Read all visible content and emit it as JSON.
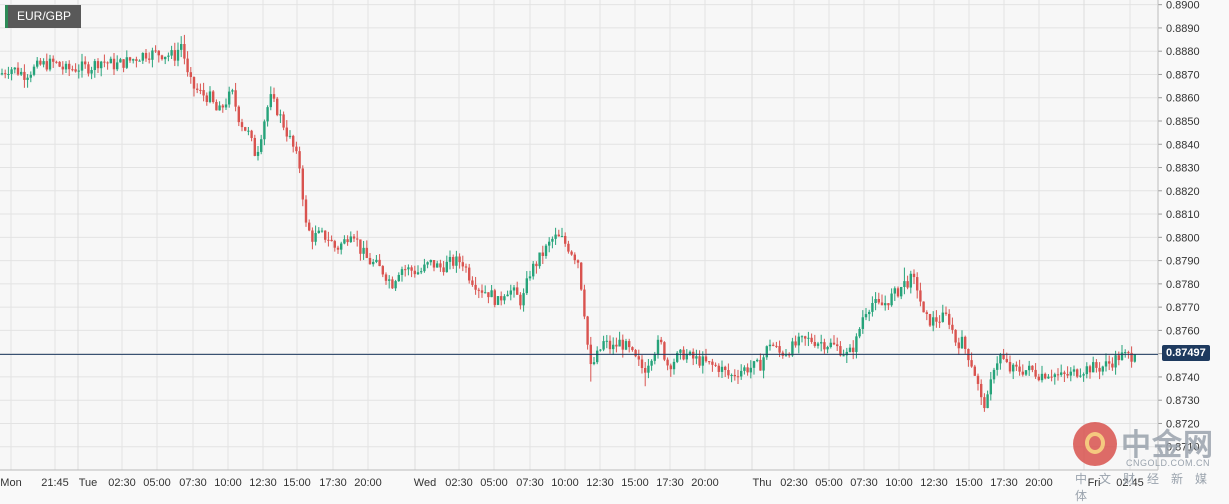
{
  "symbol": "EUR/GBP",
  "current_price": "0.87497",
  "watermark": {
    "brand": "中金网",
    "domain": "CNGOLD.COM.CN",
    "tagline": "中文财经新媒体"
  },
  "colors": {
    "up": "#26a37a",
    "down": "#d9534f",
    "price_line": "#1e3a5f",
    "grid": "#e3e3e3",
    "axis_text": "#333333"
  },
  "chart_data": {
    "type": "candlestick",
    "title": "",
    "xlabel": "",
    "ylabel": "",
    "ylim": [
      0.87,
      0.8902
    ],
    "y_ticks": [
      "0.8900",
      "0.8890",
      "0.8880",
      "0.8870",
      "0.8860",
      "0.8850",
      "0.8840",
      "0.8830",
      "0.8820",
      "0.8810",
      "0.8800",
      "0.8790",
      "0.8780",
      "0.8770",
      "0.8760",
      "0.8750",
      "0.8740",
      "0.8730",
      "0.8720",
      "0.8710"
    ],
    "x_tick_labels": [
      "Mon",
      "21:45",
      "Tue",
      "02:30",
      "05:00",
      "07:30",
      "10:00",
      "12:30",
      "15:00",
      "17:30",
      "20:00",
      "Wed",
      "02:30",
      "05:00",
      "07:30",
      "10:00",
      "12:30",
      "15:00",
      "17:30",
      "20:00",
      "Thu",
      "02:30",
      "05:00",
      "07:30",
      "10:00",
      "12:30",
      "15:00",
      "17:30",
      "20:00",
      "Fri",
      "02:45"
    ],
    "day_separators": [
      "Tue",
      "Wed",
      "Thu",
      "Fri"
    ],
    "grid": true,
    "anchors": [
      [
        0,
        0.887
      ],
      [
        10,
        0.8873
      ],
      [
        25,
        0.887
      ],
      [
        40,
        0.8874
      ],
      [
        55,
        0.8875
      ],
      [
        65,
        0.8872
      ],
      [
        80,
        0.8873
      ],
      [
        90,
        0.8873
      ],
      [
        100,
        0.8876
      ],
      [
        115,
        0.8874
      ],
      [
        130,
        0.8876
      ],
      [
        145,
        0.8879
      ],
      [
        160,
        0.8879
      ],
      [
        175,
        0.8878
      ],
      [
        182,
        0.8884
      ],
      [
        187,
        0.887
      ],
      [
        192,
        0.8865
      ],
      [
        200,
        0.8862
      ],
      [
        210,
        0.886
      ],
      [
        218,
        0.8853
      ],
      [
        225,
        0.8858
      ],
      [
        232,
        0.8862
      ],
      [
        240,
        0.885
      ],
      [
        248,
        0.8845
      ],
      [
        256,
        0.8835
      ],
      [
        264,
        0.885
      ],
      [
        270,
        0.886
      ],
      [
        277,
        0.8855
      ],
      [
        284,
        0.8848
      ],
      [
        292,
        0.884
      ],
      [
        300,
        0.883
      ],
      [
        306,
        0.8805
      ],
      [
        312,
        0.88
      ],
      [
        320,
        0.8801
      ],
      [
        328,
        0.88
      ],
      [
        336,
        0.8795
      ],
      [
        344,
        0.8798
      ],
      [
        352,
        0.8804
      ],
      [
        360,
        0.8795
      ],
      [
        368,
        0.879
      ],
      [
        376,
        0.8788
      ],
      [
        384,
        0.8785
      ],
      [
        392,
        0.878
      ],
      [
        400,
        0.8787
      ],
      [
        410,
        0.8786
      ],
      [
        420,
        0.8785
      ],
      [
        430,
        0.8789
      ],
      [
        440,
        0.8787
      ],
      [
        450,
        0.8789
      ],
      [
        462,
        0.879
      ],
      [
        470,
        0.8783
      ],
      [
        480,
        0.8778
      ],
      [
        490,
        0.8776
      ],
      [
        498,
        0.8772
      ],
      [
        506,
        0.8778
      ],
      [
        514,
        0.8776
      ],
      [
        522,
        0.8772
      ],
      [
        530,
        0.8785
      ],
      [
        538,
        0.879
      ],
      [
        546,
        0.8795
      ],
      [
        554,
        0.88
      ],
      [
        562,
        0.8799
      ],
      [
        570,
        0.8795
      ],
      [
        578,
        0.879
      ],
      [
        584,
        0.877
      ],
      [
        590,
        0.8743
      ],
      [
        596,
        0.8748
      ],
      [
        604,
        0.8755
      ],
      [
        612,
        0.8752
      ],
      [
        620,
        0.8755
      ],
      [
        628,
        0.8752
      ],
      [
        636,
        0.8747
      ],
      [
        644,
        0.8743
      ],
      [
        652,
        0.875
      ],
      [
        660,
        0.8755
      ],
      [
        668,
        0.8745
      ],
      [
        676,
        0.8748
      ],
      [
        684,
        0.875
      ],
      [
        692,
        0.8748
      ],
      [
        700,
        0.8747
      ],
      [
        710,
        0.8745
      ],
      [
        720,
        0.8744
      ],
      [
        730,
        0.874
      ],
      [
        740,
        0.8743
      ],
      [
        750,
        0.8744
      ],
      [
        760,
        0.8745
      ],
      [
        770,
        0.8755
      ],
      [
        780,
        0.875
      ],
      [
        790,
        0.8752
      ],
      [
        800,
        0.8755
      ],
      [
        810,
        0.8756
      ],
      [
        820,
        0.8755
      ],
      [
        830,
        0.8754
      ],
      [
        840,
        0.8752
      ],
      [
        848,
        0.8749
      ],
      [
        856,
        0.8755
      ],
      [
        864,
        0.8768
      ],
      [
        872,
        0.8772
      ],
      [
        880,
        0.877
      ],
      [
        888,
        0.8773
      ],
      [
        896,
        0.8776
      ],
      [
        904,
        0.878
      ],
      [
        912,
        0.8782
      ],
      [
        918,
        0.8778
      ],
      [
        924,
        0.8765
      ],
      [
        932,
        0.8764
      ],
      [
        940,
        0.8765
      ],
      [
        948,
        0.8766
      ],
      [
        956,
        0.8755
      ],
      [
        962,
        0.8755
      ],
      [
        970,
        0.8748
      ],
      [
        976,
        0.874
      ],
      [
        982,
        0.8728
      ],
      [
        988,
        0.873
      ],
      [
        994,
        0.8745
      ],
      [
        1000,
        0.8749
      ],
      [
        1010,
        0.8743
      ],
      [
        1020,
        0.8743
      ],
      [
        1030,
        0.8743
      ],
      [
        1040,
        0.8741
      ],
      [
        1050,
        0.8742
      ],
      [
        1060,
        0.874
      ],
      [
        1070,
        0.8741
      ],
      [
        1080,
        0.8743
      ],
      [
        1090,
        0.8744
      ],
      [
        1100,
        0.8744
      ],
      [
        1110,
        0.8746
      ],
      [
        1120,
        0.8749
      ],
      [
        1130,
        0.8749
      ],
      [
        1138,
        0.875
      ]
    ],
    "extremes": [
      {
        "x": 183,
        "high": 0.8887
      },
      {
        "x": 258,
        "low": 0.8833
      },
      {
        "x": 592,
        "low": 0.8738
      },
      {
        "x": 646,
        "low": 0.8736
      },
      {
        "x": 906,
        "high": 0.8787
      },
      {
        "x": 984,
        "low": 0.8725
      }
    ],
    "last_close": 0.87497
  }
}
